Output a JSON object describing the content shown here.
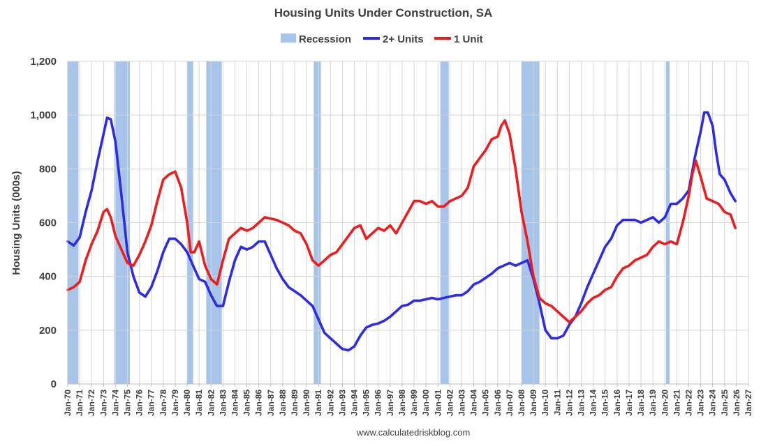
{
  "chart_data": {
    "type": "line",
    "title": "Housing Units Under Construction, SA",
    "ylabel": "Housing Units (000s)",
    "xlabel": "",
    "source": "www.calculatedriskblog.com",
    "ylim": [
      0,
      1200
    ],
    "xlim": [
      1970.0,
      2027.0
    ],
    "yticks": [
      0,
      200,
      400,
      600,
      800,
      1000,
      1200
    ],
    "ytick_labels": [
      "0",
      "200",
      "400",
      "600",
      "800",
      "1,000",
      "1,200"
    ],
    "xtick_labels": [
      "Jan-70",
      "Jan-71",
      "Jan-72",
      "Jan-73",
      "Jan-74",
      "Jan-75",
      "Jan-76",
      "Jan-77",
      "Jan-78",
      "Jan-79",
      "Jan-80",
      "Jan-81",
      "Jan-82",
      "Jan-83",
      "Jan-84",
      "Jan-85",
      "Jan-86",
      "Jan-87",
      "Jan-88",
      "Jan-89",
      "Jan-90",
      "Jan-91",
      "Jan-92",
      "Jan-93",
      "Jan-94",
      "Jan-95",
      "Jan-96",
      "Jan-97",
      "Jan-98",
      "Jan-99",
      "Jan-00",
      "Jan-01",
      "Jan-02",
      "Jan-03",
      "Jan-04",
      "Jan-05",
      "Jan-06",
      "Jan-07",
      "Jan-08",
      "Jan-09",
      "Jan-10",
      "Jan-11",
      "Jan-12",
      "Jan-13",
      "Jan-14",
      "Jan-15",
      "Jan-16",
      "Jan-17",
      "Jan-18",
      "Jan-19",
      "Jan-20",
      "Jan-21",
      "Jan-22",
      "Jan-23",
      "Jan-24",
      "Jan-25",
      "Jan-26",
      "Jan-27"
    ],
    "legend": [
      {
        "name": "Recession",
        "color": "#a7c4ea",
        "kind": "area"
      },
      {
        "name": "2+ Units",
        "color": "#2b2be8",
        "kind": "line"
      },
      {
        "name": "1 Unit",
        "color": "#ee1c1c",
        "kind": "line"
      }
    ],
    "legend_position": "top-center",
    "recessions": [
      [
        1970.0,
        1970.9
      ],
      [
        1973.9,
        1975.2
      ],
      [
        1980.0,
        1980.5
      ],
      [
        1981.6,
        1982.9
      ],
      [
        1990.6,
        1991.2
      ],
      [
        2001.2,
        2001.9
      ],
      [
        2008.0,
        2009.5
      ],
      [
        2020.1,
        2020.4
      ]
    ],
    "series": [
      {
        "name": "2+ Units",
        "color": "#2b2be8",
        "x": [
          1970.0,
          1970.5,
          1971.0,
          1971.5,
          1972.0,
          1972.5,
          1973.0,
          1973.3,
          1973.6,
          1974.0,
          1974.5,
          1975.0,
          1975.5,
          1976.0,
          1976.5,
          1977.0,
          1977.5,
          1978.0,
          1978.5,
          1979.0,
          1979.5,
          1980.0,
          1980.5,
          1981.0,
          1981.5,
          1982.0,
          1982.5,
          1983.0,
          1983.5,
          1984.0,
          1984.5,
          1985.0,
          1985.5,
          1986.0,
          1986.5,
          1987.0,
          1987.5,
          1988.0,
          1988.5,
          1989.0,
          1989.5,
          1990.0,
          1990.5,
          1991.0,
          1991.5,
          1992.0,
          1992.5,
          1993.0,
          1993.5,
          1994.0,
          1994.5,
          1995.0,
          1995.5,
          1996.0,
          1996.5,
          1997.0,
          1997.5,
          1998.0,
          1998.5,
          1999.0,
          1999.5,
          2000.0,
          2000.5,
          2001.0,
          2001.5,
          2002.0,
          2002.5,
          2003.0,
          2003.5,
          2004.0,
          2004.5,
          2005.0,
          2005.5,
          2006.0,
          2006.5,
          2007.0,
          2007.5,
          2008.0,
          2008.5,
          2009.0,
          2009.5,
          2010.0,
          2010.5,
          2011.0,
          2011.5,
          2012.0,
          2012.5,
          2013.0,
          2013.5,
          2014.0,
          2014.5,
          2015.0,
          2015.5,
          2016.0,
          2016.5,
          2017.0,
          2017.5,
          2018.0,
          2018.5,
          2019.0,
          2019.5,
          2020.0,
          2020.5,
          2021.0,
          2021.5,
          2022.0,
          2022.5,
          2023.0,
          2023.3,
          2023.6,
          2024.0,
          2024.3,
          2024.6,
          2025.0,
          2025.5,
          2025.9
        ],
        "values": [
          530,
          515,
          545,
          640,
          720,
          830,
          930,
          990,
          985,
          900,
          700,
          490,
          400,
          340,
          325,
          360,
          420,
          490,
          540,
          540,
          520,
          490,
          440,
          390,
          380,
          330,
          290,
          290,
          380,
          460,
          510,
          500,
          510,
          530,
          530,
          480,
          430,
          390,
          360,
          345,
          330,
          310,
          290,
          240,
          190,
          170,
          150,
          130,
          125,
          140,
          180,
          210,
          220,
          225,
          235,
          250,
          270,
          290,
          295,
          310,
          310,
          315,
          320,
          315,
          320,
          325,
          330,
          330,
          345,
          370,
          380,
          395,
          410,
          430,
          440,
          450,
          440,
          450,
          460,
          390,
          300,
          200,
          170,
          170,
          180,
          220,
          250,
          300,
          360,
          410,
          460,
          510,
          540,
          590,
          610,
          610,
          610,
          600,
          610,
          620,
          600,
          620,
          670,
          670,
          690,
          720,
          840,
          940,
          1010,
          1010,
          960,
          860,
          780,
          760,
          710,
          680
        ]
      },
      {
        "name": "1 Unit",
        "color": "#ee1c1c",
        "x": [
          1970.0,
          1970.5,
          1971.0,
          1971.5,
          1972.0,
          1972.5,
          1973.0,
          1973.3,
          1973.6,
          1974.0,
          1974.5,
          1975.0,
          1975.5,
          1976.0,
          1976.5,
          1977.0,
          1977.5,
          1978.0,
          1978.5,
          1979.0,
          1979.5,
          1980.0,
          1980.3,
          1980.6,
          1981.0,
          1981.5,
          1982.0,
          1982.5,
          1983.0,
          1983.5,
          1984.0,
          1984.5,
          1985.0,
          1985.5,
          1986.0,
          1986.5,
          1987.0,
          1987.5,
          1988.0,
          1988.5,
          1989.0,
          1989.5,
          1990.0,
          1990.5,
          1991.0,
          1991.5,
          1992.0,
          1992.5,
          1993.0,
          1993.5,
          1994.0,
          1994.5,
          1995.0,
          1995.5,
          1996.0,
          1996.5,
          1997.0,
          1997.5,
          1998.0,
          1998.5,
          1999.0,
          1999.5,
          2000.0,
          2000.5,
          2001.0,
          2001.5,
          2002.0,
          2002.5,
          2003.0,
          2003.5,
          2004.0,
          2004.5,
          2005.0,
          2005.5,
          2006.0,
          2006.3,
          2006.6,
          2007.0,
          2007.5,
          2008.0,
          2008.5,
          2009.0,
          2009.5,
          2010.0,
          2010.5,
          2011.0,
          2011.5,
          2012.0,
          2012.5,
          2013.0,
          2013.5,
          2014.0,
          2014.5,
          2015.0,
          2015.5,
          2016.0,
          2016.5,
          2017.0,
          2017.5,
          2018.0,
          2018.5,
          2019.0,
          2019.5,
          2020.0,
          2020.5,
          2021.0,
          2021.5,
          2022.0,
          2022.3,
          2022.6,
          2023.0,
          2023.5,
          2024.0,
          2024.5,
          2025.0,
          2025.5,
          2025.9
        ],
        "values": [
          350,
          360,
          380,
          460,
          520,
          570,
          640,
          650,
          620,
          550,
          500,
          450,
          440,
          480,
          530,
          590,
          680,
          760,
          780,
          790,
          730,
          600,
          490,
          490,
          530,
          440,
          390,
          370,
          460,
          540,
          560,
          580,
          570,
          580,
          600,
          620,
          615,
          610,
          600,
          590,
          570,
          560,
          520,
          460,
          440,
          460,
          480,
          490,
          520,
          550,
          580,
          590,
          540,
          560,
          580,
          570,
          590,
          560,
          600,
          640,
          680,
          680,
          670,
          680,
          660,
          660,
          680,
          690,
          700,
          730,
          810,
          840,
          870,
          910,
          920,
          960,
          980,
          930,
          800,
          640,
          530,
          400,
          320,
          300,
          290,
          270,
          250,
          230,
          250,
          270,
          300,
          320,
          330,
          350,
          360,
          400,
          430,
          440,
          460,
          470,
          480,
          510,
          530,
          520,
          530,
          520,
          600,
          700,
          780,
          830,
          770,
          690,
          680,
          670,
          640,
          630,
          580
        ]
      }
    ]
  }
}
